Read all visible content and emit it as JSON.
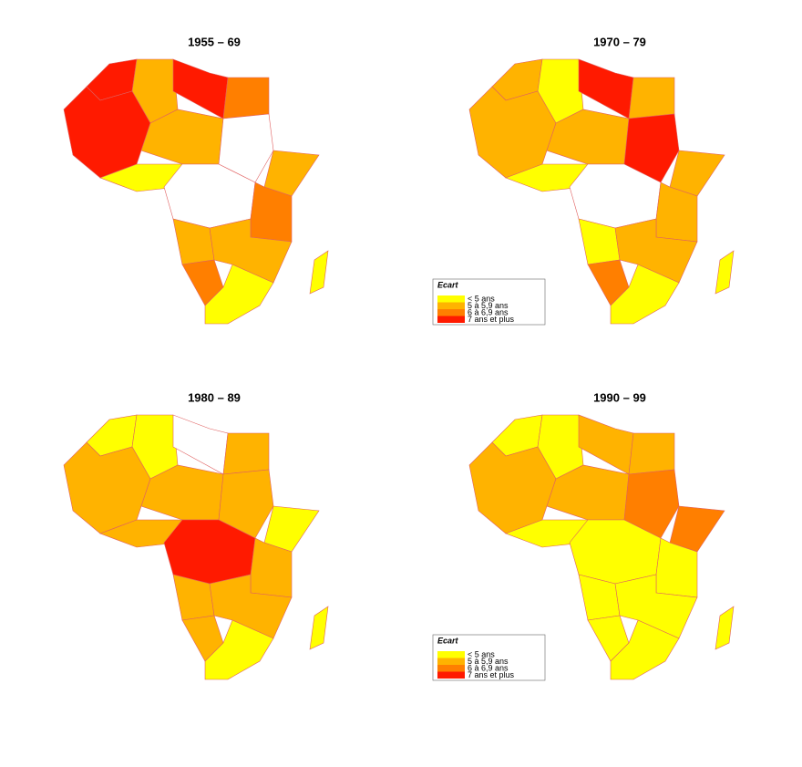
{
  "panels": [
    {
      "title": "1955 – 69"
    },
    {
      "title": "1970 – 79"
    },
    {
      "title": "1980 – 89"
    },
    {
      "title": "1990 – 99"
    }
  ],
  "legend": {
    "title": "Ecart",
    "entries": [
      "< 5 ans",
      "5 à 5,9 ans",
      "6 à 6,9 ans",
      "7 ans et plus"
    ]
  }
}
